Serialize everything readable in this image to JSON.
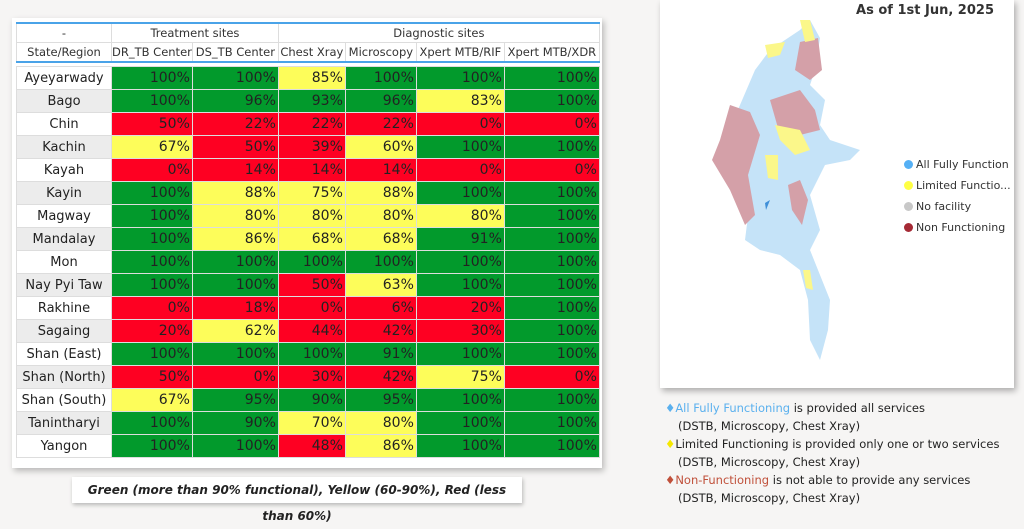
{
  "table": {
    "group_headers": [
      "-",
      "Treatment sites",
      "Diagnostic sites"
    ],
    "columns": [
      "State/Region",
      "DR_TB Center",
      "DS_TB Center",
      "Chest Xray",
      "Microscopy",
      "Xpert MTB/RIF",
      "Xpert MTB/XDR"
    ],
    "rows": [
      {
        "state": "Ayeyarwady",
        "values": [
          "100%",
          "100%",
          "85%",
          "100%",
          "100%",
          "100%"
        ]
      },
      {
        "state": "Bago",
        "values": [
          "100%",
          "96%",
          "93%",
          "96%",
          "83%",
          "100%"
        ]
      },
      {
        "state": "Chin",
        "values": [
          "50%",
          "22%",
          "22%",
          "22%",
          "0%",
          "0%"
        ]
      },
      {
        "state": "Kachin",
        "values": [
          "67%",
          "50%",
          "39%",
          "60%",
          "100%",
          "100%"
        ]
      },
      {
        "state": "Kayah",
        "values": [
          "0%",
          "14%",
          "14%",
          "14%",
          "0%",
          "0%"
        ]
      },
      {
        "state": "Kayin",
        "values": [
          "100%",
          "88%",
          "75%",
          "88%",
          "100%",
          "100%"
        ]
      },
      {
        "state": "Magway",
        "values": [
          "100%",
          "80%",
          "80%",
          "80%",
          "80%",
          "100%"
        ]
      },
      {
        "state": "Mandalay",
        "values": [
          "100%",
          "86%",
          "68%",
          "68%",
          "91%",
          "100%"
        ]
      },
      {
        "state": "Mon",
        "values": [
          "100%",
          "100%",
          "100%",
          "100%",
          "100%",
          "100%"
        ]
      },
      {
        "state": "Nay Pyi Taw",
        "values": [
          "100%",
          "100%",
          "50%",
          "63%",
          "100%",
          "100%"
        ]
      },
      {
        "state": "Rakhine",
        "values": [
          "0%",
          "18%",
          "0%",
          "6%",
          "20%",
          "100%"
        ]
      },
      {
        "state": "Sagaing",
        "values": [
          "20%",
          "62%",
          "44%",
          "42%",
          "30%",
          "100%"
        ]
      },
      {
        "state": "Shan (East)",
        "values": [
          "100%",
          "100%",
          "100%",
          "91%",
          "100%",
          "100%"
        ]
      },
      {
        "state": "Shan (North)",
        "values": [
          "50%",
          "0%",
          "30%",
          "42%",
          "75%",
          "0%"
        ]
      },
      {
        "state": "Shan (South)",
        "values": [
          "67%",
          "95%",
          "90%",
          "95%",
          "100%",
          "100%"
        ]
      },
      {
        "state": "Tanintharyi",
        "values": [
          "100%",
          "90%",
          "70%",
          "80%",
          "100%",
          "100%"
        ]
      },
      {
        "state": "Yangon",
        "values": [
          "100%",
          "100%",
          "48%",
          "86%",
          "100%",
          "100%"
        ]
      }
    ],
    "colors": {
      "green": "#029a2c",
      "yellow": "#fdfd5a",
      "red": "#fe0022"
    }
  },
  "caption": "Green (more than 90% functional), Yellow (60-90%), Red (less than 60%)",
  "map": {
    "as_of": "As of 1st Jun, 2025",
    "legend": [
      {
        "label": "All Fully Function",
        "color": "#55b0f5"
      },
      {
        "label": "Limited Functio...",
        "color": "#ffff44"
      },
      {
        "label": "No facility",
        "color": "#c8c8c8"
      },
      {
        "label": "Non Functioning",
        "color": "#a52a35"
      }
    ],
    "region_colors": {
      "fully": "#c5e3f8",
      "limited": "#fbf78a",
      "non": "#d4a0a8"
    }
  },
  "notes": [
    {
      "highlight": "All Fully Functioning",
      "rest": " is provided all services",
      "sub": "(DSTB, Microscopy, Chest Xray)",
      "color": "#5ab0ee"
    },
    {
      "highlight": "Limited Functioning",
      "rest": " is provided only one or two services",
      "sub": "(DSTB, Microscopy, Chest Xray)",
      "color": "#222222",
      "bullet": "#f5e800"
    },
    {
      "highlight": "Non-Functioning",
      "rest": " is not able to provide any services",
      "sub": "(DSTB, Microscopy, Chest Xray)",
      "color": "#c0503a"
    }
  ]
}
